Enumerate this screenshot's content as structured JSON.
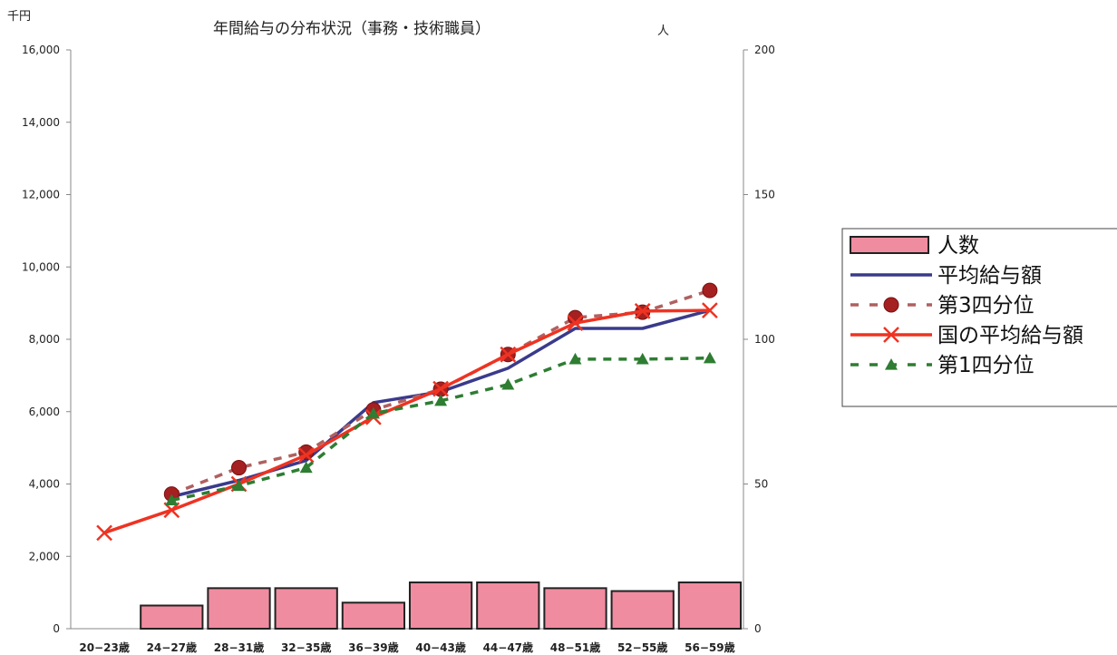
{
  "chart_data": {
    "type": "bar+line",
    "title": "年間給与の分布状況（事務・技術職員）",
    "y_left_unit": "千円",
    "y_right_unit": "人",
    "y_left_range": [
      0,
      16000
    ],
    "y_left_ticks": [
      "0",
      "2,000",
      "4,000",
      "6,000",
      "8,000",
      "10,000",
      "12,000",
      "14,000",
      "16,000"
    ],
    "y_right_range": [
      0,
      200
    ],
    "y_right_ticks": [
      "0",
      "50",
      "100",
      "150",
      "200"
    ],
    "categories": [
      "20−23歳",
      "24−27歳",
      "28−31歳",
      "32−35歳",
      "36−39歳",
      "40−43歳",
      "44−47歳",
      "48−51歳",
      "52−55歳",
      "56−59歳"
    ],
    "grid": false,
    "legend_position": "right",
    "series": [
      {
        "name": "人数",
        "kind": "bar",
        "axis": "right",
        "color": "#f08ca0",
        "values": [
          0,
          8,
          14,
          14,
          9,
          16,
          16,
          14,
          13,
          16
        ]
      },
      {
        "name": "平均給与額",
        "kind": "line",
        "axis": "left",
        "color": "#3a3a8c",
        "values": [
          null,
          3650,
          4100,
          4650,
          6250,
          6550,
          7200,
          8300,
          8300,
          8800
        ]
      },
      {
        "name": "第3四分位",
        "kind": "line-dashed-circle",
        "axis": "left",
        "color": "#a52020",
        "dash_color": "#b06060",
        "values": [
          null,
          3720,
          4450,
          4880,
          6050,
          6620,
          7580,
          8600,
          8750,
          9350
        ]
      },
      {
        "name": "国の平均給与額",
        "kind": "line-x",
        "axis": "left",
        "color": "#ee3322",
        "values": [
          2650,
          3280,
          4000,
          4800,
          5850,
          6630,
          7580,
          8450,
          8780,
          8800
        ]
      },
      {
        "name": "第1四分位",
        "kind": "line-dashed-triangle",
        "axis": "left",
        "color": "#2e7d32",
        "values": [
          null,
          3550,
          3950,
          4450,
          5950,
          6300,
          6750,
          7450,
          7450,
          7480
        ]
      }
    ]
  }
}
